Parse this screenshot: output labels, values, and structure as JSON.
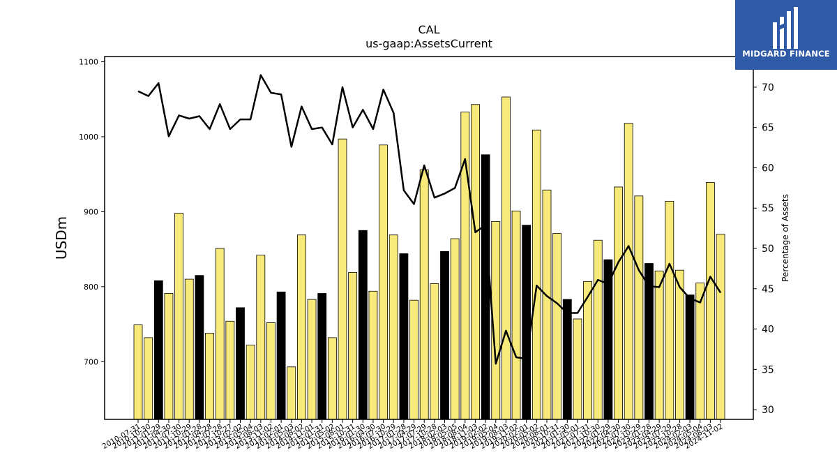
{
  "chart_data": {
    "type": "bar",
    "title": "CAL",
    "subtitle": "us-gaap:AssetsCurrent",
    "ylabel": "USDm",
    "y2label": "Percentage of Assets",
    "ylim": [
      623,
      1107
    ],
    "y2lim": [
      28.8,
      73.8
    ],
    "yticks": [
      700,
      800,
      900,
      1000,
      1100
    ],
    "y2ticks": [
      30,
      35,
      40,
      45,
      50,
      55,
      60,
      65,
      70
    ],
    "bar_color_normal": "#f7e97a",
    "bar_color_highlight": "#000000",
    "line_color": "#000000",
    "grid": false,
    "categories": [
      "2010-07-31",
      "2010-10-30",
      "2011-01-29",
      "2011-04-30",
      "2011-07-30",
      "2011-10-29",
      "2012-01-28",
      "2012-04-28",
      "2012-07-28",
      "2012-10-27",
      "2013-02-02",
      "2013-05-04",
      "2013-08-03",
      "2013-11-02",
      "2014-02-01",
      "2014-05-03",
      "2014-08-02",
      "2014-11-01",
      "2015-01-31",
      "2015-05-02",
      "2015-08-01",
      "2015-10-31",
      "2016-01-30",
      "2016-04-30",
      "2016-07-30",
      "2016-10-29",
      "2017-01-28",
      "2017-04-29",
      "2017-07-29",
      "2017-10-28",
      "2018-02-03",
      "2018-05-05",
      "2018-08-04",
      "2018-11-03",
      "2019-02-02",
      "2019-05-04",
      "2019-08-03",
      "2019-11-02",
      "2020-02-01",
      "2020-05-02",
      "2020-08-01",
      "2020-10-31",
      "2021-01-30",
      "2021-05-01",
      "2021-07-31",
      "2021-10-30",
      "2022-01-29",
      "2022-04-30",
      "2022-07-30",
      "2022-10-29",
      "2023-01-28",
      "2023-04-29",
      "2023-07-29",
      "2023-10-28",
      "2024-02-03",
      "2024-05-04",
      "2024-08-03",
      "2024-11-02"
    ],
    "values": [
      749,
      732,
      808,
      791,
      898,
      810,
      815,
      738,
      851,
      754,
      772,
      722,
      842,
      752,
      793,
      693,
      869,
      783,
      791,
      732,
      997,
      819,
      875,
      794,
      989,
      869,
      844,
      782,
      956,
      804,
      847,
      864,
      1033,
      1043,
      976,
      887,
      1053,
      901,
      882,
      1009,
      929,
      871,
      783,
      757,
      807,
      862,
      836,
      933,
      1018,
      921,
      831,
      821,
      914,
      822,
      789,
      805,
      939,
      870
    ],
    "highlight": [
      false,
      false,
      true,
      false,
      false,
      false,
      true,
      false,
      false,
      false,
      true,
      false,
      false,
      false,
      true,
      false,
      false,
      false,
      true,
      false,
      false,
      false,
      true,
      false,
      false,
      false,
      true,
      false,
      false,
      false,
      true,
      false,
      false,
      false,
      true,
      false,
      false,
      false,
      true,
      false,
      false,
      false,
      true,
      false,
      false,
      false,
      true,
      false,
      false,
      false,
      true,
      false,
      false,
      false,
      true,
      false,
      false,
      false
    ],
    "series": [
      {
        "axis": "right",
        "values": [
          69.5,
          68.9,
          70.5,
          63.9,
          66.5,
          66.1,
          66.4,
          64.8,
          67.9,
          64.8,
          66.0,
          66.0,
          71.5,
          69.3,
          69.1,
          62.6,
          67.6,
          64.8,
          65.0,
          62.9,
          70.0,
          65.0,
          67.2,
          64.8,
          69.7,
          66.8,
          57.2,
          55.5,
          60.3,
          56.3,
          56.8,
          57.5,
          61.1,
          52.0,
          52.9,
          35.7,
          39.8,
          36.5,
          36.3,
          45.4,
          44.1,
          43.2,
          42.0,
          42.0,
          44.0,
          46.1,
          45.6,
          48.3,
          50.3,
          47.3,
          45.3,
          45.2,
          48.1,
          45.2,
          43.8,
          43.3,
          46.5,
          44.5
        ]
      }
    ]
  },
  "logo": {
    "text": "MIDGARD FINANCE",
    "color": "#2f5aa8"
  }
}
